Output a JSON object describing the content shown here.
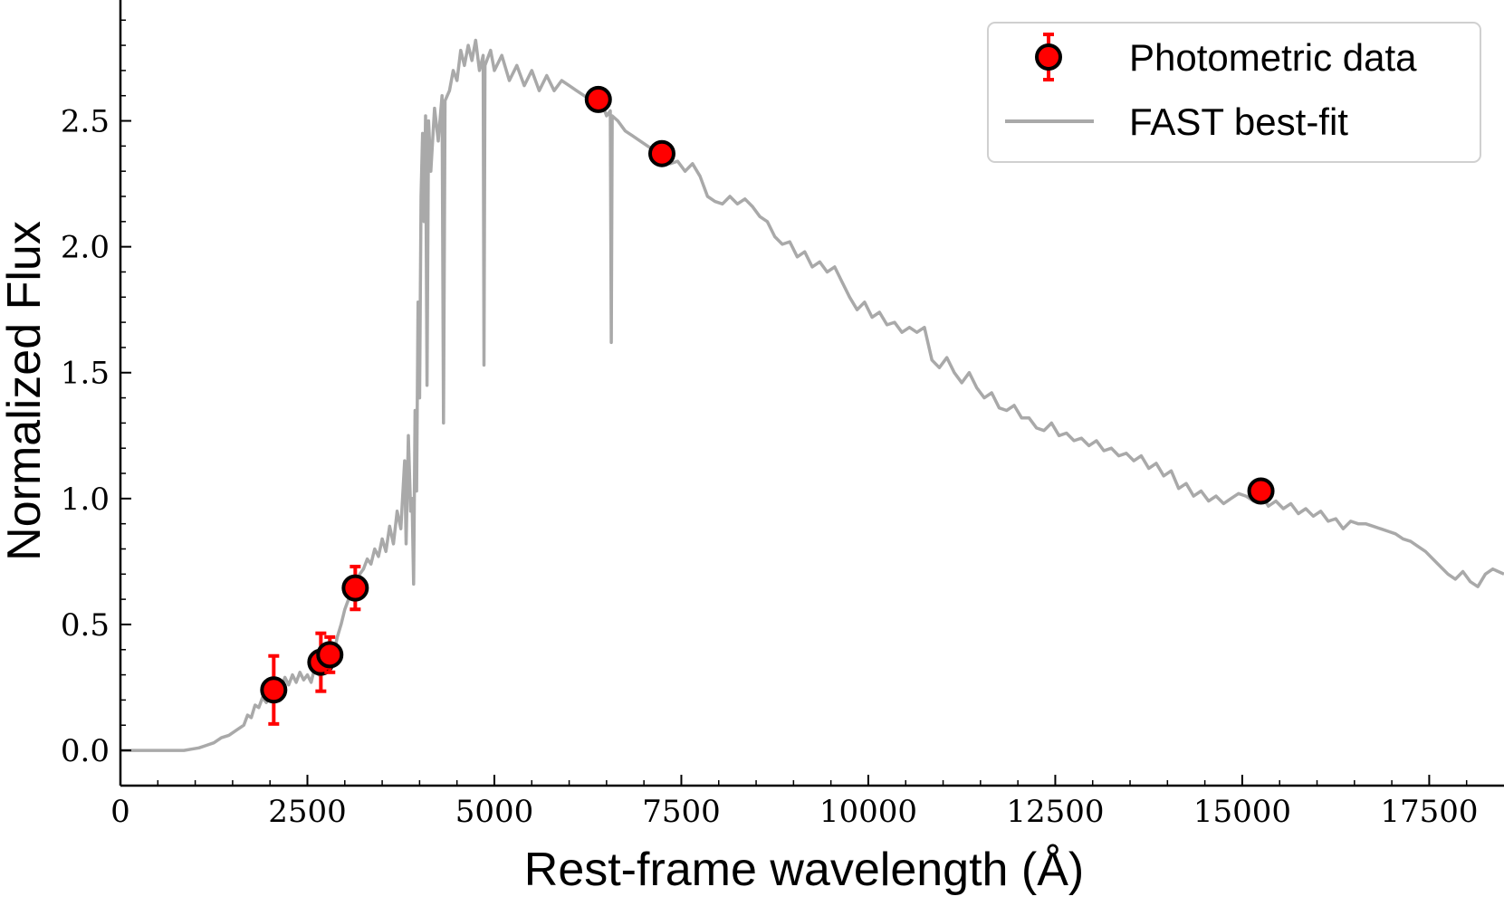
{
  "chart_data": {
    "type": "scatter",
    "title": "",
    "xlabel": "Rest-frame wavelength (Å)",
    "ylabel": "Normalized Flux",
    "xlim": [
      0,
      18500
    ],
    "ylim": [
      -0.14,
      2.98
    ],
    "x_ticks": [
      0,
      2500,
      5000,
      7500,
      10000,
      12500,
      15000,
      17500
    ],
    "x_tick_labels": [
      "0",
      "2500",
      "5000",
      "7500",
      "10000",
      "12500",
      "15000",
      "17500"
    ],
    "y_ticks": [
      0.0,
      0.5,
      1.0,
      1.5,
      2.0,
      2.5
    ],
    "y_tick_labels": [
      "0.0",
      "0.5",
      "1.0",
      "1.5",
      "2.0",
      "2.5"
    ],
    "grid": false,
    "legend_position": "top-right",
    "series": [
      {
        "name": "Photometric data",
        "kind": "errorbar-points",
        "color": "#ff0000",
        "edge_color": "#000000",
        "points": [
          {
            "x": 2050,
            "y": 0.24,
            "err": 0.135
          },
          {
            "x": 2680,
            "y": 0.35,
            "err": 0.115
          },
          {
            "x": 2800,
            "y": 0.38,
            "err": 0.07
          },
          {
            "x": 3140,
            "y": 0.645,
            "err": 0.085
          },
          {
            "x": 6390,
            "y": 2.585,
            "err": 0.0
          },
          {
            "x": 7240,
            "y": 2.37,
            "err": 0.0
          },
          {
            "x": 15250,
            "y": 1.03,
            "err": 0.0
          }
        ]
      },
      {
        "name": "FAST best-fit",
        "kind": "line",
        "color": "#a9a9a9",
        "points": [
          [
            0,
            0.0
          ],
          [
            850,
            0.0
          ],
          [
            950,
            0.005
          ],
          [
            1050,
            0.01
          ],
          [
            1150,
            0.02
          ],
          [
            1250,
            0.03
          ],
          [
            1350,
            0.05
          ],
          [
            1450,
            0.06
          ],
          [
            1550,
            0.08
          ],
          [
            1650,
            0.1
          ],
          [
            1700,
            0.14
          ],
          [
            1750,
            0.13
          ],
          [
            1800,
            0.18
          ],
          [
            1850,
            0.17
          ],
          [
            1900,
            0.21
          ],
          [
            1950,
            0.19
          ],
          [
            2000,
            0.24
          ],
          [
            2050,
            0.22
          ],
          [
            2100,
            0.27
          ],
          [
            2150,
            0.25
          ],
          [
            2200,
            0.29
          ],
          [
            2250,
            0.26
          ],
          [
            2300,
            0.3
          ],
          [
            2350,
            0.27
          ],
          [
            2400,
            0.31
          ],
          [
            2450,
            0.28
          ],
          [
            2500,
            0.3
          ],
          [
            2550,
            0.27
          ],
          [
            2600,
            0.33
          ],
          [
            2650,
            0.3
          ],
          [
            2700,
            0.36
          ],
          [
            2750,
            0.34
          ],
          [
            2800,
            0.4
          ],
          [
            2850,
            0.38
          ],
          [
            2900,
            0.45
          ],
          [
            2950,
            0.5
          ],
          [
            3000,
            0.56
          ],
          [
            3050,
            0.6
          ],
          [
            3100,
            0.63
          ],
          [
            3150,
            0.64
          ],
          [
            3200,
            0.7
          ],
          [
            3250,
            0.72
          ],
          [
            3300,
            0.76
          ],
          [
            3350,
            0.74
          ],
          [
            3400,
            0.8
          ],
          [
            3450,
            0.77
          ],
          [
            3500,
            0.84
          ],
          [
            3550,
            0.79
          ],
          [
            3600,
            0.89
          ],
          [
            3650,
            0.82
          ],
          [
            3700,
            0.95
          ],
          [
            3750,
            0.88
          ],
          [
            3800,
            1.15
          ],
          [
            3820,
            0.82
          ],
          [
            3850,
            1.25
          ],
          [
            3880,
            0.95
          ],
          [
            3900,
            1.0
          ],
          [
            3920,
            0.66
          ],
          [
            3940,
            1.35
          ],
          [
            3960,
            1.03
          ],
          [
            3980,
            1.78
          ],
          [
            4000,
            1.4
          ],
          [
            4020,
            2.2
          ],
          [
            4040,
            2.45
          ],
          [
            4060,
            2.1
          ],
          [
            4080,
            2.52
          ],
          [
            4100,
            1.45
          ],
          [
            4120,
            2.5
          ],
          [
            4150,
            2.3
          ],
          [
            4200,
            2.55
          ],
          [
            4250,
            2.42
          ],
          [
            4300,
            2.6
          ],
          [
            4320,
            1.3
          ],
          [
            4340,
            2.58
          ],
          [
            4400,
            2.62
          ],
          [
            4450,
            2.7
          ],
          [
            4500,
            2.66
          ],
          [
            4550,
            2.78
          ],
          [
            4600,
            2.72
          ],
          [
            4650,
            2.8
          ],
          [
            4700,
            2.74
          ],
          [
            4750,
            2.82
          ],
          [
            4800,
            2.7
          ],
          [
            4850,
            2.76
          ],
          [
            4861,
            1.53
          ],
          [
            4875,
            2.72
          ],
          [
            4950,
            2.78
          ],
          [
            5000,
            2.7
          ],
          [
            5100,
            2.76
          ],
          [
            5200,
            2.66
          ],
          [
            5300,
            2.72
          ],
          [
            5400,
            2.64
          ],
          [
            5500,
            2.7
          ],
          [
            5600,
            2.62
          ],
          [
            5700,
            2.68
          ],
          [
            5800,
            2.62
          ],
          [
            5900,
            2.66
          ],
          [
            6000,
            2.64
          ],
          [
            6100,
            2.62
          ],
          [
            6200,
            2.6
          ],
          [
            6300,
            2.58
          ],
          [
            6400,
            2.6
          ],
          [
            6500,
            2.52
          ],
          [
            6550,
            2.54
          ],
          [
            6563,
            1.62
          ],
          [
            6575,
            2.52
          ],
          [
            6650,
            2.5
          ],
          [
            6750,
            2.46
          ],
          [
            6850,
            2.44
          ],
          [
            6950,
            2.42
          ],
          [
            7050,
            2.4
          ],
          [
            7150,
            2.38
          ],
          [
            7250,
            2.36
          ],
          [
            7350,
            2.33
          ],
          [
            7450,
            2.34
          ],
          [
            7550,
            2.3
          ],
          [
            7650,
            2.33
          ],
          [
            7750,
            2.28
          ],
          [
            7850,
            2.2
          ],
          [
            7950,
            2.18
          ],
          [
            8050,
            2.17
          ],
          [
            8150,
            2.2
          ],
          [
            8250,
            2.17
          ],
          [
            8350,
            2.19
          ],
          [
            8450,
            2.16
          ],
          [
            8550,
            2.12
          ],
          [
            8650,
            2.1
          ],
          [
            8750,
            2.04
          ],
          [
            8850,
            2.01
          ],
          [
            8950,
            2.02
          ],
          [
            9050,
            1.96
          ],
          [
            9150,
            1.98
          ],
          [
            9250,
            1.92
          ],
          [
            9350,
            1.94
          ],
          [
            9450,
            1.9
          ],
          [
            9550,
            1.92
          ],
          [
            9650,
            1.86
          ],
          [
            9750,
            1.8
          ],
          [
            9850,
            1.75
          ],
          [
            9950,
            1.78
          ],
          [
            10050,
            1.72
          ],
          [
            10150,
            1.74
          ],
          [
            10250,
            1.69
          ],
          [
            10350,
            1.7
          ],
          [
            10450,
            1.66
          ],
          [
            10550,
            1.68
          ],
          [
            10650,
            1.66
          ],
          [
            10750,
            1.68
          ],
          [
            10850,
            1.55
          ],
          [
            10950,
            1.52
          ],
          [
            11050,
            1.56
          ],
          [
            11150,
            1.5
          ],
          [
            11250,
            1.46
          ],
          [
            11350,
            1.5
          ],
          [
            11450,
            1.44
          ],
          [
            11550,
            1.4
          ],
          [
            11650,
            1.42
          ],
          [
            11750,
            1.36
          ],
          [
            11850,
            1.35
          ],
          [
            11950,
            1.37
          ],
          [
            12050,
            1.32
          ],
          [
            12150,
            1.32
          ],
          [
            12250,
            1.28
          ],
          [
            12350,
            1.27
          ],
          [
            12450,
            1.3
          ],
          [
            12550,
            1.25
          ],
          [
            12650,
            1.26
          ],
          [
            12750,
            1.23
          ],
          [
            12850,
            1.24
          ],
          [
            12950,
            1.21
          ],
          [
            13050,
            1.23
          ],
          [
            13150,
            1.19
          ],
          [
            13250,
            1.2
          ],
          [
            13350,
            1.17
          ],
          [
            13450,
            1.18
          ],
          [
            13550,
            1.15
          ],
          [
            13650,
            1.17
          ],
          [
            13750,
            1.12
          ],
          [
            13850,
            1.14
          ],
          [
            13950,
            1.09
          ],
          [
            14050,
            1.11
          ],
          [
            14150,
            1.04
          ],
          [
            14250,
            1.06
          ],
          [
            14350,
            1.01
          ],
          [
            14450,
            1.03
          ],
          [
            14550,
            0.99
          ],
          [
            14650,
            1.01
          ],
          [
            14750,
            0.98
          ],
          [
            14850,
            1.0
          ],
          [
            14950,
            1.02
          ],
          [
            15050,
            1.01
          ],
          [
            15150,
            0.99
          ],
          [
            15250,
            1.02
          ],
          [
            15350,
            0.97
          ],
          [
            15450,
            0.99
          ],
          [
            15550,
            0.96
          ],
          [
            15650,
            0.98
          ],
          [
            15750,
            0.94
          ],
          [
            15850,
            0.96
          ],
          [
            15950,
            0.93
          ],
          [
            16050,
            0.95
          ],
          [
            16150,
            0.91
          ],
          [
            16250,
            0.92
          ],
          [
            16350,
            0.88
          ],
          [
            16450,
            0.91
          ],
          [
            16550,
            0.9
          ],
          [
            16650,
            0.9
          ],
          [
            16750,
            0.89
          ],
          [
            16850,
            0.88
          ],
          [
            16950,
            0.87
          ],
          [
            17050,
            0.86
          ],
          [
            17150,
            0.84
          ],
          [
            17250,
            0.83
          ],
          [
            17350,
            0.81
          ],
          [
            17450,
            0.79
          ],
          [
            17550,
            0.76
          ],
          [
            17650,
            0.73
          ],
          [
            17750,
            0.7
          ],
          [
            17850,
            0.68
          ],
          [
            17950,
            0.71
          ],
          [
            18050,
            0.67
          ],
          [
            18150,
            0.65
          ],
          [
            18250,
            0.7
          ],
          [
            18350,
            0.72
          ],
          [
            18500,
            0.7
          ]
        ]
      }
    ]
  }
}
